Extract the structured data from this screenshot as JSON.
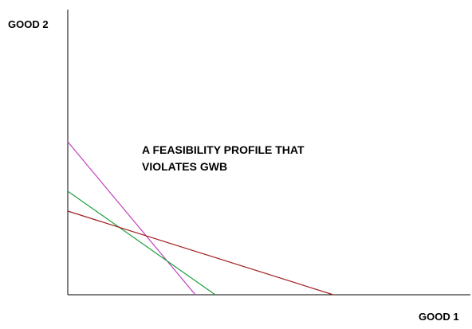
{
  "diagram": {
    "y_axis_label": "GOOD 2",
    "x_axis_label": "GOOD 1",
    "annotation_line1": "A FEASIBILITY PROFILE THAT",
    "annotation_line2": "VIOLATES GWB"
  },
  "colors": {
    "axis": "#000000",
    "purple_line": "#c040c0",
    "green_line": "#20a040",
    "red_line": "#a02020"
  }
}
